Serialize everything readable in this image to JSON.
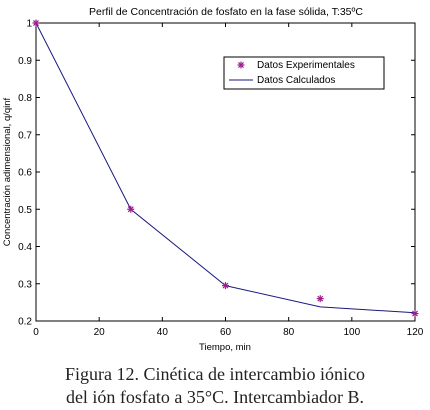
{
  "chart_data": {
    "type": "line",
    "title": "Perfil de Concentración de fosfato en la fase sólida, T:35ºC",
    "xlabel": "Tiempo, min",
    "ylabel": "Concentración adimensional, q/qinf",
    "xlim": [
      0,
      120
    ],
    "ylim": [
      0.2,
      1.0
    ],
    "xticks": [
      0,
      20,
      40,
      60,
      80,
      100,
      120
    ],
    "yticks": [
      0.2,
      0.3,
      0.4,
      0.5,
      0.6,
      0.7,
      0.8,
      0.9,
      1.0
    ],
    "xtick_labels": [
      "0",
      "20",
      "40",
      "60",
      "80",
      "100",
      "120"
    ],
    "ytick_labels": [
      "0.2",
      "0.3",
      "0.4",
      "0.5",
      "0.6",
      "0.7",
      "0.8",
      "0.9",
      "1"
    ],
    "grid": false,
    "legend_position": "top-right",
    "series": [
      {
        "name": "Datos Experimentales",
        "style": "markers",
        "marker": "asterisk",
        "color": "#9b1f8c",
        "x": [
          0,
          30,
          60,
          90,
          120
        ],
        "y": [
          1.0,
          0.5,
          0.295,
          0.26,
          0.22
        ]
      },
      {
        "name": "Datos Calculados",
        "style": "line",
        "color": "#1a1a80",
        "x": [
          0,
          30,
          60,
          90,
          120
        ],
        "y": [
          1.0,
          0.5,
          0.295,
          0.238,
          0.222
        ]
      }
    ]
  },
  "caption": {
    "line1": "Figura 12. Cinética de intercambio iónico",
    "line2": "del ión fosfato a 35°C. Intercambiador B."
  }
}
